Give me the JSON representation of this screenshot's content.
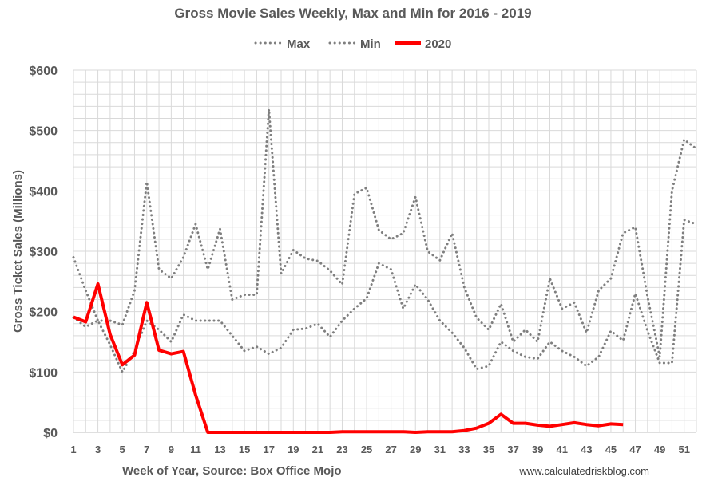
{
  "chart_data": {
    "type": "line",
    "title": "Gross Movie Sales Weekly, Max and Min for 2016 - 2019",
    "xlabel": "Week of Year, Source: Box Office Mojo",
    "ylabel": "Gross Ticket Sales (Millions)",
    "source_note": "www.calculatedriskblog.com",
    "legend_position": "top-center",
    "grid": true,
    "xlim": [
      1,
      52
    ],
    "ylim": [
      0,
      600
    ],
    "y_ticks": [
      0,
      100,
      200,
      300,
      400,
      500,
      600
    ],
    "y_tick_labels": [
      "$0",
      "$100",
      "$200",
      "$300",
      "$400",
      "$500",
      "$600"
    ],
    "x_tick_labels": [
      1,
      3,
      5,
      7,
      9,
      11,
      13,
      15,
      17,
      19,
      21,
      23,
      25,
      27,
      29,
      31,
      33,
      35,
      37,
      39,
      41,
      43,
      45,
      47,
      49,
      51
    ],
    "colors": {
      "max": "#7f7f7f",
      "min": "#7f7f7f",
      "y2020": "#ff0000",
      "grid": "#d9d9d9",
      "text": "#595959"
    },
    "series": [
      {
        "name": "Max",
        "style": "dotted",
        "x": [
          1,
          2,
          3,
          4,
          5,
          6,
          7,
          8,
          9,
          10,
          11,
          12,
          13,
          14,
          15,
          16,
          17,
          18,
          19,
          20,
          21,
          22,
          23,
          24,
          25,
          26,
          27,
          28,
          29,
          30,
          31,
          32,
          33,
          34,
          35,
          36,
          37,
          38,
          39,
          40,
          41,
          42,
          43,
          44,
          45,
          46,
          47,
          48,
          49,
          50,
          51,
          52
        ],
        "values": [
          290,
          235,
          185,
          185,
          178,
          235,
          415,
          270,
          255,
          290,
          345,
          270,
          337,
          220,
          228,
          228,
          535,
          263,
          302,
          288,
          284,
          268,
          245,
          395,
          405,
          335,
          320,
          330,
          390,
          300,
          285,
          330,
          240,
          190,
          170,
          213,
          150,
          170,
          150,
          255,
          205,
          215,
          165,
          235,
          255,
          330,
          340,
          225,
          125,
          400,
          485,
          470
        ]
      },
      {
        "name": "Min",
        "style": "dotted",
        "x": [
          1,
          2,
          3,
          4,
          5,
          6,
          7,
          8,
          9,
          10,
          11,
          12,
          13,
          14,
          15,
          16,
          17,
          18,
          19,
          20,
          21,
          22,
          23,
          24,
          25,
          26,
          27,
          28,
          29,
          30,
          31,
          32,
          33,
          34,
          35,
          36,
          37,
          38,
          39,
          40,
          41,
          42,
          43,
          44,
          45,
          46,
          47,
          48,
          49,
          50,
          51,
          52
        ],
        "values": [
          190,
          175,
          185,
          145,
          100,
          135,
          185,
          170,
          150,
          195,
          185,
          185,
          185,
          160,
          135,
          142,
          130,
          140,
          170,
          172,
          180,
          158,
          185,
          205,
          222,
          280,
          270,
          205,
          245,
          220,
          185,
          165,
          140,
          105,
          110,
          150,
          135,
          125,
          122,
          150,
          135,
          125,
          110,
          125,
          168,
          152,
          230,
          168,
          115,
          115,
          352,
          345
        ]
      },
      {
        "name": "2020",
        "style": "solid",
        "x": [
          1,
          2,
          3,
          4,
          5,
          6,
          7,
          8,
          9,
          10,
          11,
          12,
          13,
          14,
          15,
          16,
          17,
          18,
          19,
          20,
          21,
          22,
          23,
          24,
          25,
          26,
          27,
          28,
          29,
          30,
          31,
          32,
          33,
          34,
          35,
          36,
          37,
          38,
          39,
          40,
          41,
          42,
          43,
          44,
          45,
          46
        ],
        "values": [
          191,
          183,
          246,
          162,
          112,
          128,
          215,
          136,
          130,
          134,
          62,
          0,
          0,
          0,
          0,
          0,
          0,
          0,
          0,
          0,
          0,
          0,
          1,
          1,
          1,
          1,
          1,
          1,
          0,
          1,
          1,
          1,
          3,
          7,
          15,
          30,
          15,
          15,
          12,
          10,
          13,
          16,
          13,
          11,
          14,
          13
        ]
      }
    ]
  }
}
